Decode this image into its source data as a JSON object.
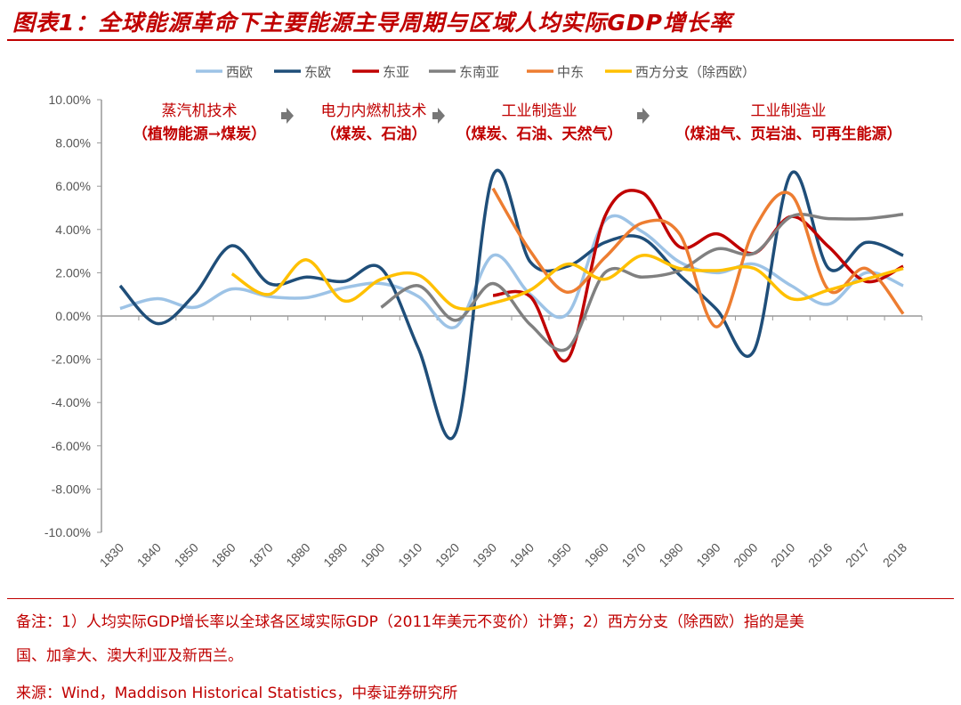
{
  "title": "图表1：全球能源革命下主要能源主导周期与区域人均实际GDP增长率",
  "notes": [
    "备注：1）人均实际GDP增长率以全球各区域实际GDP（2011年美元不变价）计算；2）西方分支（除西欧）指的是美",
    "国、加拿大、澳大利亚及新西兰。"
  ],
  "source": "来源：Wind，Maddison Historical Statistics，中泰证券研究所",
  "chart_data": {
    "type": "line",
    "categories": [
      "1830",
      "1840",
      "1850",
      "1860",
      "1870",
      "1880",
      "1890",
      "1900",
      "1910",
      "1920",
      "1930",
      "1940",
      "1950",
      "1960",
      "1970",
      "1980",
      "1990",
      "2000",
      "2010",
      "2016",
      "2017",
      "2018"
    ],
    "ylim": [
      -10,
      10
    ],
    "yticks": [
      "-10.00%",
      "-8.00%",
      "-6.00%",
      "-4.00%",
      "-2.00%",
      "0.00%",
      "2.00%",
      "4.00%",
      "6.00%",
      "8.00%",
      "10.00%"
    ],
    "legend_placement": "top",
    "series": [
      {
        "name": "西欧",
        "color": "#9dc3e6",
        "values": [
          0.35,
          0.8,
          0.4,
          1.25,
          0.9,
          0.85,
          1.3,
          1.5,
          0.9,
          -0.5,
          2.8,
          1.0,
          0.1,
          4.4,
          3.9,
          2.5,
          2.0,
          2.4,
          1.4,
          0.55,
          2.0,
          1.4
        ]
      },
      {
        "name": "东欧",
        "color": "#1f4e79",
        "values": [
          1.4,
          -0.35,
          1.0,
          3.25,
          1.5,
          1.8,
          1.6,
          2.2,
          -1.5,
          -5.4,
          6.5,
          2.5,
          2.3,
          3.4,
          3.6,
          1.9,
          0.3,
          -1.6,
          6.6,
          2.2,
          3.4,
          2.8
        ]
      },
      {
        "name": "东亚",
        "color": "#c00000",
        "values": [
          null,
          null,
          null,
          null,
          null,
          null,
          null,
          null,
          null,
          null,
          0.95,
          0.9,
          -2.0,
          4.6,
          5.7,
          3.2,
          3.8,
          2.9,
          4.6,
          3.2,
          1.6,
          2.3
        ]
      },
      {
        "name": "东南亚",
        "color": "#808080",
        "values": [
          null,
          null,
          null,
          null,
          null,
          null,
          null,
          0.4,
          1.4,
          -0.2,
          1.5,
          -0.4,
          -1.5,
          2.0,
          1.8,
          2.1,
          3.1,
          2.9,
          4.6,
          4.5,
          4.5,
          4.7
        ]
      },
      {
        "name": "中东",
        "color": "#ed7d31",
        "values": [
          null,
          null,
          null,
          null,
          null,
          null,
          null,
          null,
          null,
          null,
          5.9,
          3.0,
          1.1,
          2.7,
          4.3,
          3.8,
          -0.5,
          4.0,
          5.6,
          1.2,
          2.2,
          0.1
        ]
      },
      {
        "name": "西方分支（除西欧）",
        "color": "#ffc000",
        "values": [
          null,
          null,
          null,
          1.95,
          1.0,
          2.6,
          0.7,
          1.7,
          1.9,
          0.4,
          0.6,
          1.2,
          2.4,
          1.7,
          2.8,
          2.2,
          2.1,
          2.2,
          0.8,
          1.2,
          1.7,
          2.2
        ]
      }
    ],
    "annotations": [
      {
        "line1": "蒸汽机技术",
        "line2": "（植物能源→煤炭）"
      },
      {
        "line1": "电力内燃机技术",
        "line2": "（煤炭、石油）"
      },
      {
        "line1": "工业制造业",
        "line2": "（煤炭、石油、天然气）"
      },
      {
        "line1": "工业制造业",
        "line2": "（煤油气、页岩油、可再生能源）"
      }
    ],
    "annotation_color": "#c00000"
  }
}
